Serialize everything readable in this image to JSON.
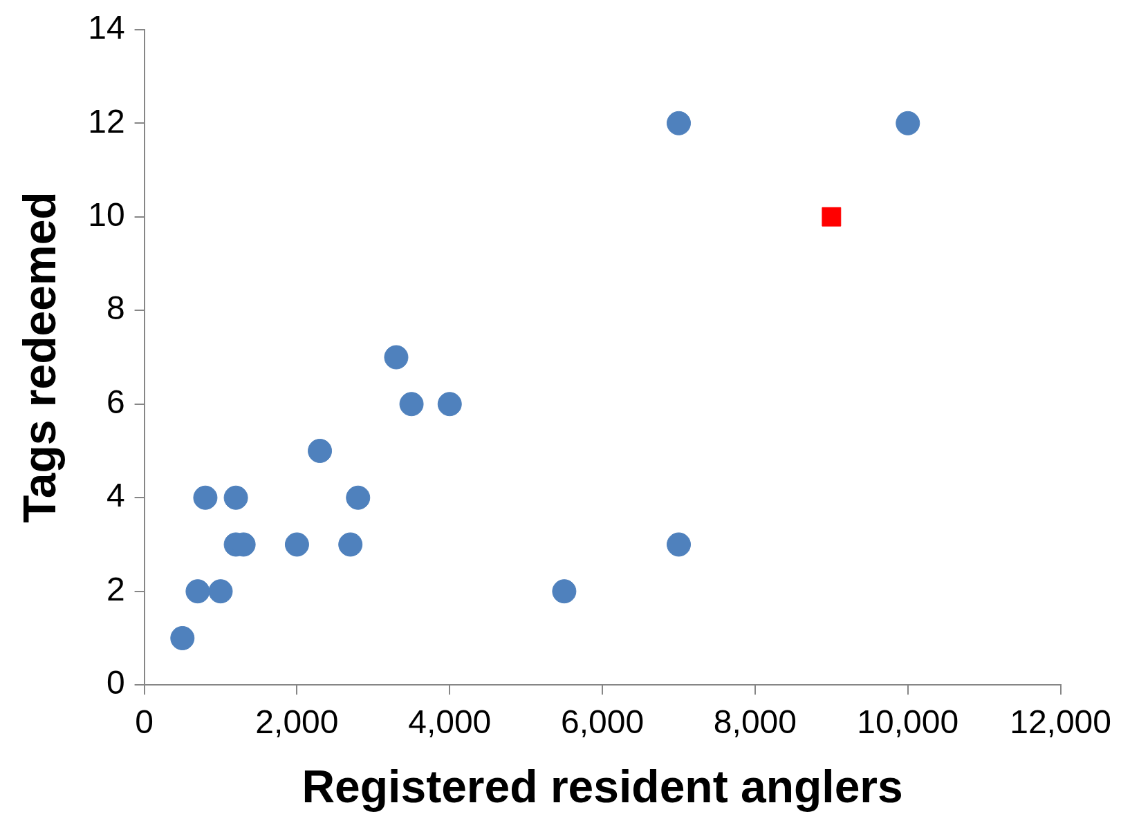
{
  "chart_data": {
    "type": "scatter",
    "xlabel": "Registered resident anglers",
    "ylabel": "Tags redeemed",
    "xlim": [
      0,
      12000
    ],
    "ylim": [
      0,
      14
    ],
    "xticks": [
      0,
      {
        "value": 2000,
        "label": "2,000"
      },
      {
        "value": 4000,
        "label": "4,000"
      },
      {
        "value": 6000,
        "label": "6,000"
      },
      {
        "value": 8000,
        "label": "8,000"
      },
      {
        "value": 10000,
        "label": "10,000"
      },
      {
        "value": 12000,
        "label": "12,000"
      }
    ],
    "yticks": [
      0,
      2,
      4,
      6,
      8,
      10,
      12,
      14
    ],
    "grid": false,
    "legend": false,
    "marker": "circle",
    "series": [
      {
        "color": "#4f81bd",
        "x": [
          500,
          700,
          1000,
          800,
          1200,
          1200,
          1300,
          2000,
          2300,
          2700,
          2800,
          3300,
          3500,
          4000,
          5500,
          7000,
          7000,
          10000
        ],
        "values": [
          1,
          2,
          2,
          4,
          4,
          3,
          3,
          3,
          5,
          3,
          4,
          7,
          6,
          6,
          2,
          12,
          3,
          12
        ]
      },
      {
        "color": "#ff0000",
        "marker": "square",
        "x": [
          9000
        ],
        "values": [
          10
        ]
      }
    ]
  }
}
